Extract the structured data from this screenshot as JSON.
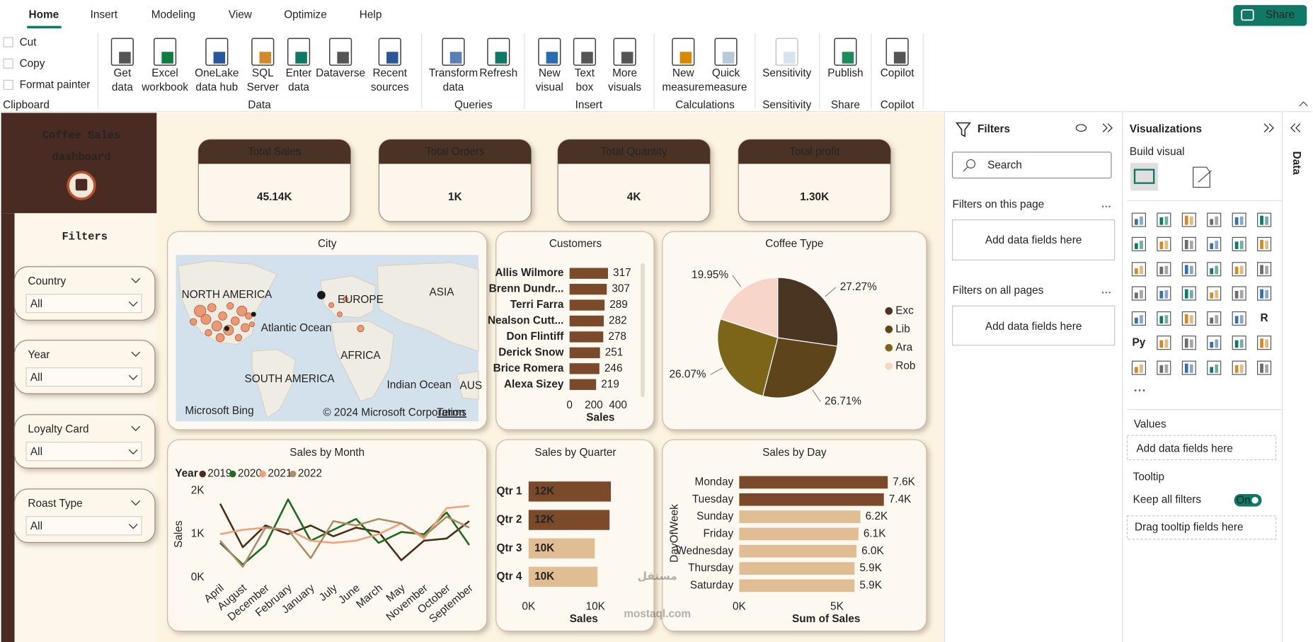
{
  "ribbon": {
    "tabs": [
      "Home",
      "Insert",
      "Modeling",
      "View",
      "Optimize",
      "Help"
    ],
    "share": "Share",
    "groups": [
      {
        "label": "Clipboard",
        "buttons": [
          [
            "Cut"
          ],
          [
            "Copy"
          ],
          [
            "Format painter"
          ]
        ]
      },
      {
        "label": "Data",
        "buttons": [
          [
            "Get",
            "data"
          ],
          [
            "Excel",
            "workbook"
          ],
          [
            "OneLake",
            "data hub"
          ],
          [
            "SQL",
            "Server"
          ],
          [
            "Enter",
            "data"
          ],
          [
            "Dataverse"
          ],
          [
            "Recent",
            "sources"
          ]
        ]
      },
      {
        "label": "Queries",
        "buttons": [
          [
            "Transform",
            "data"
          ],
          [
            "Refresh"
          ]
        ]
      },
      {
        "label": "Insert",
        "buttons": [
          [
            "New",
            "visual"
          ],
          [
            "Text",
            "box"
          ],
          [
            "More",
            "visuals"
          ]
        ]
      },
      {
        "label": "Calculations",
        "buttons": [
          [
            "New",
            "measure"
          ],
          [
            "Quick",
            "measure"
          ]
        ]
      },
      {
        "label": "Sensitivity",
        "buttons": [
          [
            "Sensitivity"
          ]
        ]
      },
      {
        "label": "Share",
        "buttons": [
          [
            "Publish"
          ]
        ]
      },
      {
        "label": "Copilot",
        "buttons": [
          [
            "Copilot"
          ]
        ]
      }
    ]
  },
  "dashboard": {
    "title": [
      "Coffee Sales",
      "dashboard"
    ],
    "filters_title": "Filters",
    "slicers": [
      {
        "label": "Country",
        "value": "All"
      },
      {
        "label": "Year",
        "value": "All"
      },
      {
        "label": "Loyalty Card",
        "value": "All"
      },
      {
        "label": "Roast Type",
        "value": "All"
      }
    ],
    "kpis": [
      {
        "title": "Total Sales",
        "value": "45.14K"
      },
      {
        "title": "Total Orders",
        "value": "1K"
      },
      {
        "title": "Total Quantity",
        "value": "4K"
      },
      {
        "title": "Total profit",
        "value": "1.30K"
      }
    ],
    "map": {
      "title": "City",
      "labels": [
        "NORTH AMERICA",
        "EUROPE",
        "ASIA",
        "Atlantic Ocean",
        "AFRICA",
        "SOUTH AMERICA",
        "Indian Ocean",
        "AUS"
      ],
      "credit": "Microsoft Bing",
      "copyright": "© 2024 Microsoft Corporation",
      "terms": "Terms"
    }
  },
  "chart_data": [
    {
      "type": "bar",
      "title": "Customers",
      "categories": [
        "Allis Wilmore",
        "Brenn Dundr...",
        "Terri Farra",
        "Nealson Cutt...",
        "Don Flintiff",
        "Derick Snow",
        "Brice Romera",
        "Alexa Sizey"
      ],
      "values": [
        317,
        307,
        289,
        282,
        278,
        251,
        246,
        219
      ],
      "color": "#7b4a2b",
      "xlim": [
        0,
        400
      ],
      "xticks": [
        0,
        200,
        400
      ],
      "x_label": "Sales"
    },
    {
      "type": "pie",
      "title": "Coffee Type",
      "categories": [
        "Exc",
        "Lib",
        "Ara",
        "Rob"
      ],
      "values": [
        27.27,
        26.71,
        26.07,
        19.95
      ],
      "value_labels": [
        "27.27%",
        "26.71%",
        "26.07%",
        "19.95%"
      ],
      "colors": [
        "#4a3522",
        "#5e441a",
        "#7c6418",
        "#f8d5c9"
      ]
    },
    {
      "type": "line",
      "title": "Sales by Month",
      "legend_title": "Year",
      "y_label": "Sales",
      "categories": [
        "April",
        "August",
        "December",
        "February",
        "January",
        "July",
        "June",
        "March",
        "May",
        "November",
        "October",
        "September"
      ],
      "series": [
        {
          "name": "2019",
          "color": "#4a2e1b",
          "values": [
            1700,
            700,
            1200,
            1000,
            1200,
            950,
            1150,
            1050,
            400,
            850,
            900,
            1300
          ]
        },
        {
          "name": "2020",
          "color": "#1f6b1f",
          "values": [
            800,
            300,
            750,
            1800,
            850,
            1100,
            1350,
            800,
            1050,
            1000,
            1500,
            750
          ]
        },
        {
          "name": "2021",
          "color": "#f2a07b",
          "values": [
            1000,
            1100,
            1150,
            1100,
            850,
            800,
            850,
            1000,
            1250,
            900,
            1600,
            1650
          ]
        },
        {
          "name": "2022",
          "color": "#b08d68",
          "values": [
            850,
            250,
            1150,
            1100,
            450,
            1300,
            1200,
            1350,
            1250,
            950,
            1400,
            1150
          ]
        }
      ],
      "ylim": [
        0,
        2000
      ],
      "yticks": [
        {
          "value": 0,
          "label": "0K"
        },
        {
          "value": 1000,
          "label": "1K"
        },
        {
          "value": 2000,
          "label": "2K"
        }
      ]
    },
    {
      "type": "bar",
      "title": "Sales by Quarter",
      "categories": [
        "Qtr 1",
        "Qtr 2",
        "Qtr 3",
        "Qtr 4"
      ],
      "values": [
        12300,
        12100,
        9900,
        10300
      ],
      "value_labels": [
        "12K",
        "12K",
        "10K",
        "10K"
      ],
      "colors": [
        "#7b4a2b",
        "#7b4a2b",
        "#e1bd94",
        "#e1bd94"
      ],
      "xlim": [
        0,
        13000
      ],
      "xticks": [
        {
          "value": 0,
          "label": "0K"
        },
        {
          "value": 10000,
          "label": "10K"
        }
      ],
      "x_label": "Sales"
    },
    {
      "type": "bar",
      "title": "Sales by Day",
      "categories": [
        "Monday",
        "Tuesday",
        "Sunday",
        "Friday",
        "Wednesday",
        "Thursday",
        "Saturday"
      ],
      "values": [
        7600,
        7400,
        6200,
        6100,
        6000,
        5900,
        5900
      ],
      "value_labels": [
        "7.6K",
        "7.4K",
        "6.2K",
        "6.1K",
        "6.0K",
        "5.9K",
        "5.9K"
      ],
      "colors": [
        "#7b4a2b",
        "#7b4a2b",
        "#e1bd94",
        "#e1bd94",
        "#e1bd94",
        "#e1bd94",
        "#e1bd94"
      ],
      "xlim": [
        0,
        8000
      ],
      "xticks": [
        {
          "value": 0,
          "label": "0K"
        },
        {
          "value": 5000,
          "label": "5K"
        }
      ],
      "x_label": "Sum of Sales",
      "y_label": "DayOfWeek"
    }
  ],
  "filters_pane": {
    "title": "Filters",
    "search": "Search",
    "sections": [
      {
        "title": "Filters on this page",
        "placeholder": "Add data fields here"
      },
      {
        "title": "Filters on all pages",
        "placeholder": "Add data fields here"
      }
    ]
  },
  "visualizations_pane": {
    "title": "Visualizations",
    "build_visual": "Build visual",
    "icon_labels": [
      "R",
      "Py"
    ],
    "values_title": "Values",
    "values_placeholder": "Add data fields here",
    "tooltip_title": "Tooltip",
    "keep_all_filters": "Keep all filters",
    "toggle": "On",
    "tooltip_placeholder": "Drag tooltip fields here"
  },
  "data_tab": "Data",
  "watermark": [
    "مستقل",
    "mostaql.com"
  ]
}
